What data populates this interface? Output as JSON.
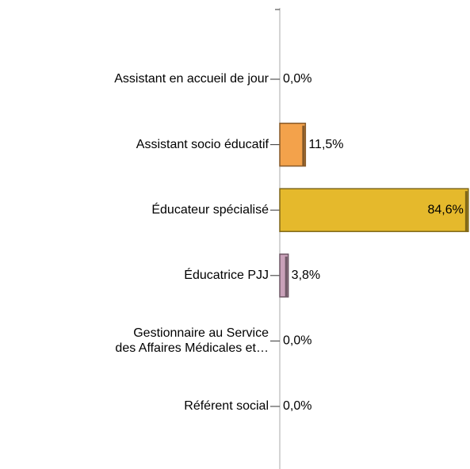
{
  "chart_data": {
    "type": "bar",
    "orientation": "horizontal",
    "categories": [
      "Assistant en accueil de jour",
      "Assistant socio éducatif",
      "Éducateur spécialisé",
      "Éducatrice PJJ",
      [
        "Gestionnaire au Service",
        "des Affaires Médicales et…"
      ],
      "Référent social"
    ],
    "values": [
      0,
      11.5,
      84.6,
      3.8,
      0,
      0
    ],
    "value_labels": [
      "0,0%",
      "11,5%",
      "84,6%",
      "3,8%",
      "0,0%",
      "0,0%"
    ],
    "colors": [
      null,
      "#f3a24b",
      "#e5b92c",
      "#c9a1b9",
      null,
      null
    ],
    "xlim": [
      0,
      85
    ]
  }
}
